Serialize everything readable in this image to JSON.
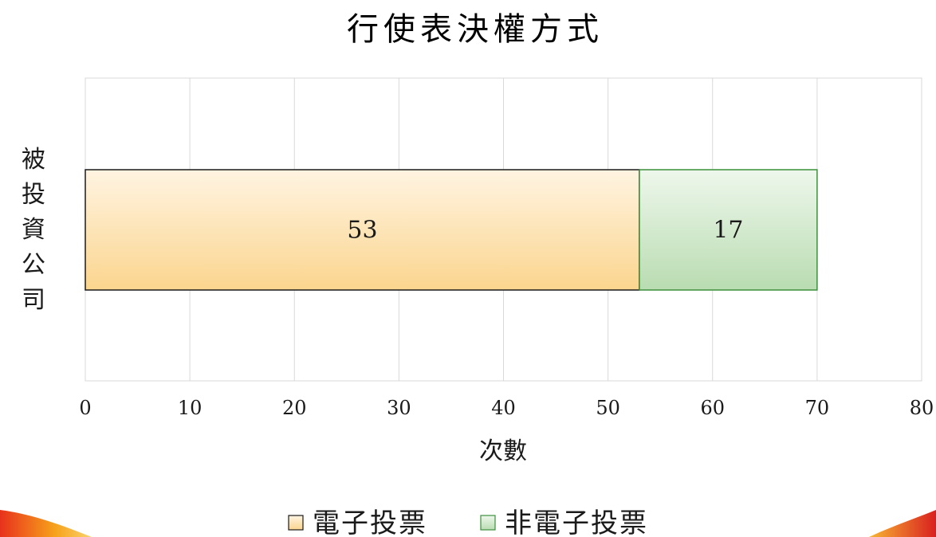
{
  "chart_data": {
    "type": "bar",
    "orientation": "horizontal",
    "stacked": true,
    "title": "行使表決權方式",
    "xlabel": "次數",
    "ylabel": "被投資公司",
    "xlim": [
      0,
      80
    ],
    "x_ticks": [
      "0",
      "10",
      "20",
      "30",
      "40",
      "50",
      "60",
      "70",
      "80"
    ],
    "grid": true,
    "legend_position": "bottom",
    "categories": [
      ""
    ],
    "series": [
      {
        "name": "電子投票",
        "values": [
          53
        ],
        "labels": [
          "53"
        ],
        "color": "#fbd9a0"
      },
      {
        "name": "非電子投票",
        "values": [
          17
        ],
        "labels": [
          "17"
        ],
        "color": "#cbe6c4"
      }
    ]
  }
}
